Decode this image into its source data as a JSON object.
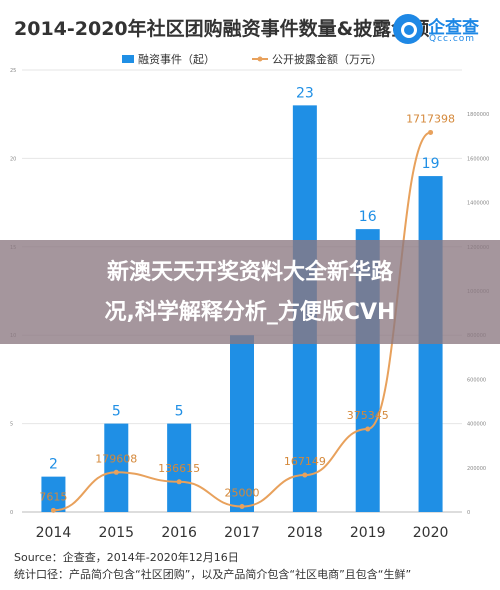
{
  "header": {
    "title": "2014-2020年社区团购融资事件数量&披露金额",
    "logo_name": "企查查",
    "logo_sub": "Qcc.com"
  },
  "chart_data": {
    "type": "bar",
    "title": "2014-2020年社区团购融资事件数量&披露金额",
    "categories": [
      "2014",
      "2015",
      "2016",
      "2017",
      "2018",
      "2019",
      "2020"
    ],
    "series": [
      {
        "name": "融资事件（起）",
        "type": "bar",
        "axis": "left",
        "values": [
          2,
          5,
          5,
          10,
          23,
          16,
          19
        ],
        "labels": [
          "2",
          "5",
          "5",
          "",
          "23",
          "16",
          "19"
        ]
      },
      {
        "name": "公开披露金额（万元）",
        "type": "line",
        "axis": "right",
        "values": [
          7615,
          179608,
          136615,
          25000,
          167149,
          375345,
          1717398
        ],
        "labels": [
          "7615",
          "179608",
          "136615",
          "25000",
          "167149",
          "375345",
          "1717398"
        ]
      }
    ],
    "left_axis": {
      "min": 0,
      "max": 25,
      "ticks": [
        "0",
        "5",
        "10",
        "15",
        "20",
        "25"
      ]
    },
    "right_axis": {
      "min": 0,
      "max": 2000000,
      "ticks": [
        "0",
        "200000",
        "400000",
        "600000",
        "800000",
        "1000000",
        "1200000",
        "1400000",
        "1600000",
        "1800000"
      ]
    },
    "legend_position": "top",
    "colors": {
      "bar": "#1f8fe5",
      "line": "#e8a15c",
      "line_label": "#d4883a",
      "bar_label": "#1f8fe5"
    }
  },
  "overlay": {
    "line1": "新澳天天开奖资料大全新华路",
    "line2": "况,科学解释分析_方便版CVH"
  },
  "footer": {
    "source": "Source：企查查，2014年-2020年12月16日",
    "note": "统计口径：产品简介包含“社区团购”，以及产品简介包含“社区电商”且包含“生鲜”"
  }
}
